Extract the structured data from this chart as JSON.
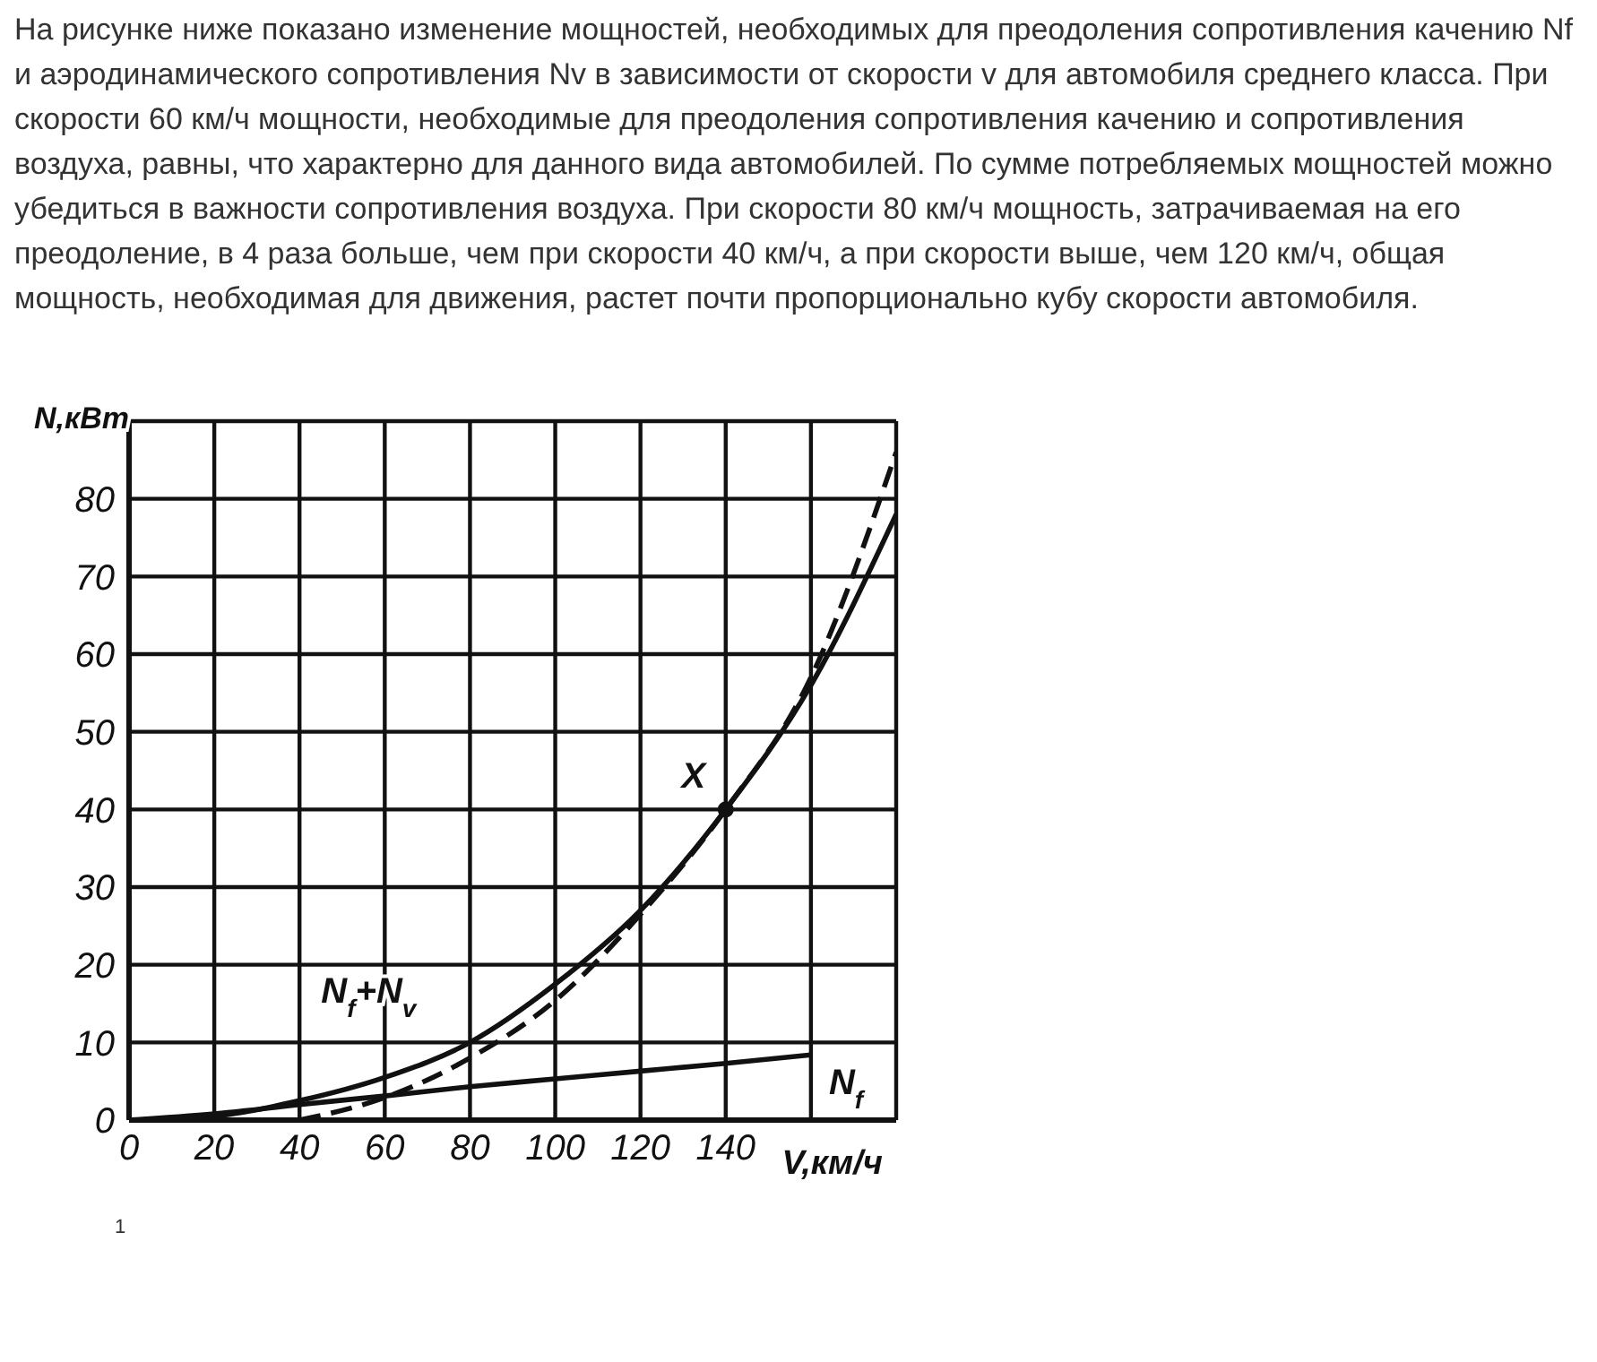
{
  "chart_data": {
    "type": "line",
    "title": "На рисунке ниже показано изменение мощностей, необходимых для преодоления сопротивления качению Nf и аэродинамического сопротивления Nv в зависимости от скорости v для автомобиля среднего класса. При скорости 60 км/ч мощности, необходимые для преодоления сопротивления качению и сопротивления воздуха, равны, что характерно для данного вида автомобилей. По сумме потребляемых мощностей можно убедиться в важности сопротивления воздуха. При скорости 80 км/ч мощность, затрачиваемая на его преодоление, в 4 раза больше, чем при скорости 40 км/ч, а при скорости выше, чем 120 км/ч, общая мощность, необходимая для движения, растет почти пропорционально кубу скорости автомобиля.",
    "xlabel": "V,км/ч",
    "ylabel": "N,кВт",
    "xlim": [
      0,
      180
    ],
    "ylim": [
      0,
      90
    ],
    "xticks": [
      0,
      20,
      40,
      60,
      80,
      100,
      120,
      140,
      {
        "value": 160,
        "label": null
      },
      {
        "value": 180,
        "label": null
      }
    ],
    "yticks": [
      0,
      10,
      20,
      30,
      40,
      50,
      60,
      70,
      80,
      {
        "value": 90,
        "label": null
      }
    ],
    "grid": true,
    "marker": "none",
    "line_style": "solid",
    "series": [
      {
        "name": "N$_{f}$+N$_{v}$",
        "color": "#111111",
        "x": [
          0,
          20,
          40,
          60,
          80,
          100,
          120,
          140,
          160,
          180
        ],
        "values": [
          0,
          0.5,
          2.5,
          5.5,
          10,
          17.5,
          27,
          40,
          56,
          78
        ]
      },
      {
        "color": "#111111",
        "line_style": "dashed",
        "x": [
          40,
          60,
          80,
          100,
          120,
          140,
          160,
          180
        ],
        "values": [
          0,
          2.9,
          8,
          15.4,
          26.5,
          40,
          57,
          86
        ]
      },
      {
        "name": "N$_{f}$",
        "color": "#111111",
        "x": [
          0,
          20,
          40,
          60,
          80,
          100,
          120,
          140,
          160
        ],
        "values": [
          0,
          0.8,
          2,
          3.1,
          4.3,
          5.3,
          6.3,
          7.3,
          8.4
        ]
      },
      {
        "type": "scatter",
        "marker": "circle",
        "color": "#111111",
        "x": [
          140
        ],
        "values": [
          40
        ]
      }
    ],
    "annotations": [
      {
        "text": "X",
        "x": 140,
        "y": 40
      },
      "1"
    ]
  }
}
